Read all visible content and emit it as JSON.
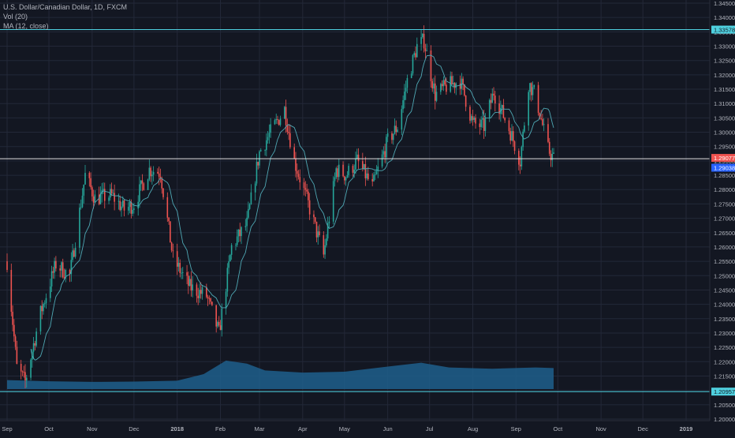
{
  "chart_data": {
    "type": "candlestick",
    "title": "U.S. Dollar/Canadian Dollar, 1D, FXCM",
    "indicators": [
      "Vol (20)",
      "MA (12, close)"
    ],
    "ylim": [
      1.2,
      1.345
    ],
    "y_ticks": [
      "1.34500",
      "1.34000",
      "1.33500",
      "1.33000",
      "1.32500",
      "1.32000",
      "1.31500",
      "1.31000",
      "1.30500",
      "1.30000",
      "1.29500",
      "1.29000",
      "1.28500",
      "1.28000",
      "1.27500",
      "1.27000",
      "1.26500",
      "1.26000",
      "1.25500",
      "1.25000",
      "1.24500",
      "1.24000",
      "1.23500",
      "1.23000",
      "1.22500",
      "1.22000",
      "1.21500",
      "1.21000",
      "1.20500",
      "1.20000"
    ],
    "x_ticks": [
      {
        "label": "Sep",
        "date": "2017-09-01"
      },
      {
        "label": "Oct",
        "date": "2017-10-01"
      },
      {
        "label": "Nov",
        "date": "2017-11-01"
      },
      {
        "label": "Dec",
        "date": "2017-12-01"
      },
      {
        "label": "2018",
        "date": "2018-01-01"
      },
      {
        "label": "Feb",
        "date": "2018-02-01"
      },
      {
        "label": "Mar",
        "date": "2018-03-01"
      },
      {
        "label": "Apr",
        "date": "2018-04-01"
      },
      {
        "label": "May",
        "date": "2018-05-01"
      },
      {
        "label": "Jun",
        "date": "2018-06-01"
      },
      {
        "label": "Jul",
        "date": "2018-07-01"
      },
      {
        "label": "Aug",
        "date": "2018-08-01"
      },
      {
        "label": "Sep",
        "date": "2018-09-01"
      },
      {
        "label": "Oct",
        "date": "2018-10-01"
      },
      {
        "label": "Nov",
        "date": "2018-11-01"
      },
      {
        "label": "Dec",
        "date": "2018-12-01"
      },
      {
        "label": "2019",
        "date": "2019-01-01"
      }
    ],
    "horizontal_levels": [
      {
        "value": 1.33578,
        "label": "1.33578",
        "color": "#4fd1e0"
      },
      {
        "value": 1.29077,
        "label": "1.29077",
        "color": "#e0e0e0"
      },
      {
        "value": 1.20957,
        "label": "1.20957",
        "color": "#4fd1e0"
      }
    ],
    "price_labels": [
      {
        "value": 1.29077,
        "label": "1.29077",
        "color": "#ef5350"
      },
      {
        "value": 1.29038,
        "label": "1.29038",
        "color": "#2962ff"
      }
    ],
    "price_waypoints": [
      {
        "date": "2017-09-01",
        "price": 1.255
      },
      {
        "date": "2017-09-08",
        "price": 1.218
      },
      {
        "date": "2017-09-14",
        "price": 1.213
      },
      {
        "date": "2017-09-25",
        "price": 1.237
      },
      {
        "date": "2017-10-06",
        "price": 1.254
      },
      {
        "date": "2017-10-16",
        "price": 1.25
      },
      {
        "date": "2017-10-27",
        "price": 1.285
      },
      {
        "date": "2017-11-03",
        "price": 1.277
      },
      {
        "date": "2017-11-15",
        "price": 1.278
      },
      {
        "date": "2017-11-24",
        "price": 1.273
      },
      {
        "date": "2017-12-01",
        "price": 1.275
      },
      {
        "date": "2017-12-12",
        "price": 1.287
      },
      {
        "date": "2017-12-20",
        "price": 1.286
      },
      {
        "date": "2017-12-29",
        "price": 1.256
      },
      {
        "date": "2018-01-10",
        "price": 1.246
      },
      {
        "date": "2018-01-22",
        "price": 1.243
      },
      {
        "date": "2018-01-31",
        "price": 1.23
      },
      {
        "date": "2018-02-09",
        "price": 1.26
      },
      {
        "date": "2018-02-20",
        "price": 1.268
      },
      {
        "date": "2018-03-01",
        "price": 1.293
      },
      {
        "date": "2018-03-09",
        "price": 1.3
      },
      {
        "date": "2018-03-19",
        "price": 1.308
      },
      {
        "date": "2018-03-26",
        "price": 1.29
      },
      {
        "date": "2018-04-05",
        "price": 1.275
      },
      {
        "date": "2018-04-16",
        "price": 1.257
      },
      {
        "date": "2018-04-25",
        "price": 1.287
      },
      {
        "date": "2018-05-02",
        "price": 1.285
      },
      {
        "date": "2018-05-10",
        "price": 1.29
      },
      {
        "date": "2018-05-21",
        "price": 1.281
      },
      {
        "date": "2018-06-01",
        "price": 1.297
      },
      {
        "date": "2018-06-08",
        "price": 1.302
      },
      {
        "date": "2018-06-15",
        "price": 1.318
      },
      {
        "date": "2018-06-22",
        "price": 1.33
      },
      {
        "date": "2018-06-27",
        "price": 1.332
      },
      {
        "date": "2018-07-05",
        "price": 1.313
      },
      {
        "date": "2018-07-13",
        "price": 1.316
      },
      {
        "date": "2018-07-23",
        "price": 1.318
      },
      {
        "date": "2018-08-01",
        "price": 1.303
      },
      {
        "date": "2018-08-09",
        "price": 1.302
      },
      {
        "date": "2018-08-16",
        "price": 1.314
      },
      {
        "date": "2018-08-28",
        "price": 1.3
      },
      {
        "date": "2018-09-04",
        "price": 1.29
      },
      {
        "date": "2018-09-10",
        "price": 1.317
      },
      {
        "date": "2018-09-15",
        "price": 1.313
      },
      {
        "date": "2018-09-24",
        "price": 1.294
      },
      {
        "date": "2018-09-28",
        "price": 1.2908
      }
    ],
    "volume_waypoints": [
      {
        "date": "2017-09-01",
        "value": 0.3
      },
      {
        "date": "2017-10-01",
        "value": 0.26
      },
      {
        "date": "2017-11-01",
        "value": 0.24
      },
      {
        "date": "2017-12-01",
        "value": 0.25
      },
      {
        "date": "2018-01-01",
        "value": 0.28
      },
      {
        "date": "2018-01-20",
        "value": 0.5
      },
      {
        "date": "2018-02-05",
        "value": 0.95
      },
      {
        "date": "2018-02-20",
        "value": 0.85
      },
      {
        "date": "2018-03-05",
        "value": 0.62
      },
      {
        "date": "2018-04-01",
        "value": 0.55
      },
      {
        "date": "2018-05-01",
        "value": 0.58
      },
      {
        "date": "2018-06-01",
        "value": 0.75
      },
      {
        "date": "2018-06-25",
        "value": 0.88
      },
      {
        "date": "2018-07-15",
        "value": 0.72
      },
      {
        "date": "2018-08-15",
        "value": 0.68
      },
      {
        "date": "2018-09-15",
        "value": 0.72
      },
      {
        "date": "2018-09-28",
        "value": 0.7
      }
    ],
    "up_color": "#26a69a",
    "down_color": "#ef5350",
    "ma_color": "#4fa8b4",
    "volume_color": "#1e5f8c",
    "grid": true
  }
}
